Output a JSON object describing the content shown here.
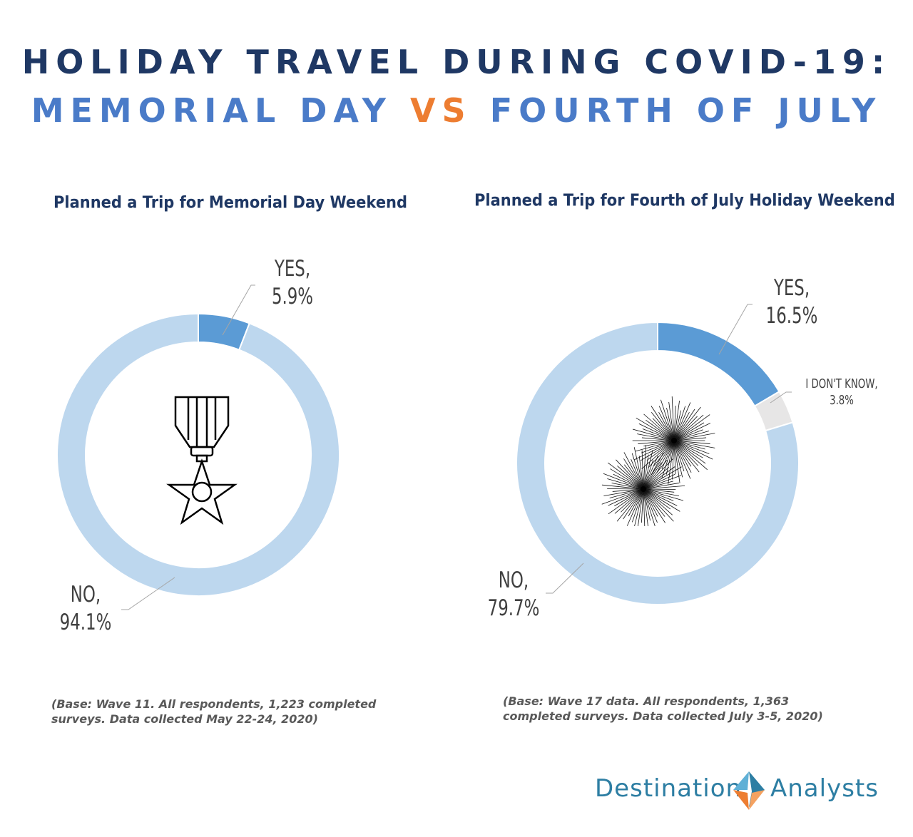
{
  "header": {
    "line1": "HOLIDAY TRAVEL DURING COVID-19:",
    "line2_left": "MEMORIAL DAY",
    "line2_vs": "VS",
    "line2_right": "FOURTH OF JULY"
  },
  "colors": {
    "navy": "#1f3864",
    "blue_title": "#4a7bc8",
    "orange": "#ed7d31",
    "yes": "#5b9bd5",
    "no": "#bdd7ee",
    "dont_know": "#e7e6e6",
    "brand_teal": "#2d7ea3"
  },
  "chart_data": [
    {
      "type": "pie",
      "title": "Planned a Trip for Memorial Day Weekend",
      "center_icon": "medal-icon",
      "slices": [
        {
          "label": "YES,",
          "value": 5.9,
          "display": "5.9%",
          "color": "#5b9bd5"
        },
        {
          "label": "NO,",
          "value": 94.1,
          "display": "94.1%",
          "color": "#bdd7ee"
        }
      ],
      "note": "(Base: Wave 11. All respondents, 1,223 completed surveys. Data collected May 22-24, 2020)"
    },
    {
      "type": "pie",
      "title": "Planned a Trip for Fourth of July Holiday Weekend",
      "center_icon": "fireworks-icon",
      "slices": [
        {
          "label": "YES,",
          "value": 16.5,
          "display": "16.5%",
          "color": "#5b9bd5"
        },
        {
          "label": "I DON'T KNOW,",
          "value": 3.8,
          "display": "3.8%",
          "color": "#e7e6e6"
        },
        {
          "label": "NO,",
          "value": 79.7,
          "display": "79.7%",
          "color": "#bdd7ee"
        }
      ],
      "note": "(Base: Wave 17 data. All respondents, 1,363 completed surveys. Data collected July 3-5, 2020)"
    }
  ],
  "brand": {
    "left_word": "Destination",
    "right_word": "Analysts"
  }
}
